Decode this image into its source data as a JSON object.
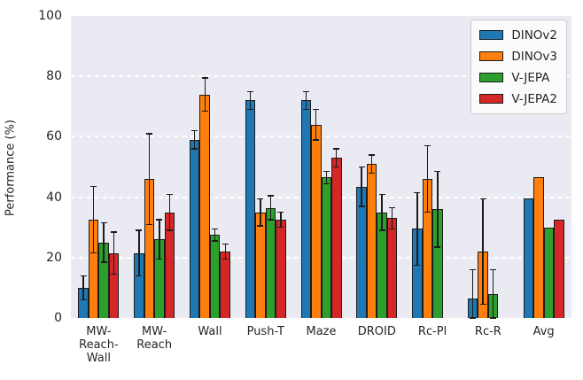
{
  "chart_data": {
    "type": "bar",
    "title": "",
    "xlabel": "",
    "ylabel": "Performance (%)",
    "ylim": [
      0,
      100
    ],
    "yticks": [
      0,
      20,
      40,
      60,
      80,
      100
    ],
    "grid": true,
    "grid_style": "dashed-white",
    "legend_position": "upper right",
    "categories": [
      "MW-\nReach-\nWall",
      "MW-\nReach",
      "Wall",
      "Push-T",
      "Maze",
      "DROID",
      "Rc-Pl",
      "Rc-R",
      "Avg"
    ],
    "series": [
      {
        "name": "DINOv2",
        "color": "#1f77b4",
        "values": [
          10,
          21.5,
          59,
          72,
          72,
          43.5,
          29.5,
          6.5,
          39.5
        ],
        "errors": [
          4,
          7.5,
          3,
          3,
          3,
          6.5,
          12,
          9.5,
          0
        ]
      },
      {
        "name": "DINOv3",
        "color": "#ff7f0e",
        "values": [
          32.5,
          46,
          74,
          35,
          64,
          51,
          46,
          22,
          46.5
        ],
        "errors": [
          11,
          15,
          5.5,
          4.5,
          5,
          3,
          11,
          17.5,
          0
        ]
      },
      {
        "name": "V-JEPA",
        "color": "#2ca02c",
        "values": [
          25,
          26,
          27.5,
          36.5,
          46.5,
          35,
          36,
          8,
          30
        ],
        "errors": [
          6.5,
          6.5,
          2,
          4,
          2,
          6,
          12.5,
          8,
          0
        ]
      },
      {
        "name": "V-JEPA2",
        "color": "#d62728",
        "values": [
          21.5,
          35,
          22,
          32.5,
          53,
          33,
          null,
          null,
          32.5
        ],
        "errors": [
          7,
          6,
          2.5,
          2.5,
          3,
          3.5,
          null,
          null,
          0
        ]
      }
    ]
  },
  "colors": {
    "plot_background": "#eaeaf2",
    "gridline": "#ffffff",
    "bar_edge": "#1c1c1c",
    "error_bar": "#1c1c1c",
    "text": "#262626"
  }
}
